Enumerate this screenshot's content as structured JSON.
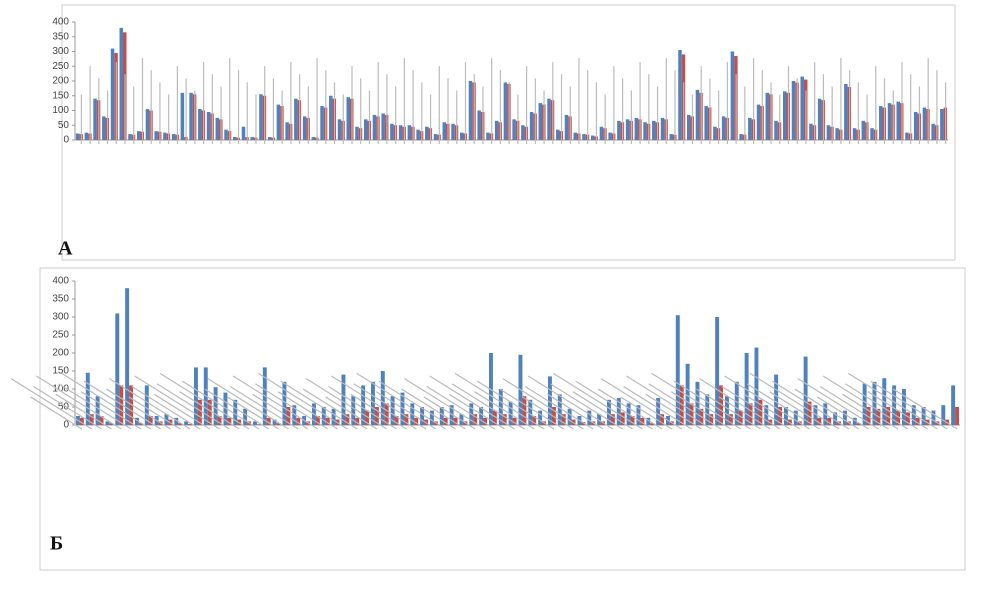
{
  "chart_data": [
    {
      "type": "bar",
      "label": "А",
      "ylim": [
        0,
        400
      ],
      "yticks": [
        0,
        50,
        100,
        150,
        200,
        250,
        300,
        350,
        400
      ],
      "series": [
        {
          "color": "#4f81bd",
          "values": [
            22,
            25,
            140,
            80,
            310,
            380,
            20,
            30,
            105,
            30,
            25,
            20,
            160,
            160,
            105,
            95,
            75,
            35,
            10,
            45,
            10,
            155,
            10,
            120,
            60,
            140,
            80,
            10,
            115,
            150,
            70,
            145,
            45,
            70,
            85,
            90,
            55,
            50,
            50,
            35,
            45,
            20,
            60,
            55,
            25,
            200,
            100,
            25,
            65,
            195,
            70,
            50,
            95,
            125,
            140,
            35,
            85,
            25,
            20,
            15,
            45,
            25,
            65,
            70,
            75,
            60,
            65,
            75,
            20,
            305,
            85,
            170,
            115,
            45,
            80,
            300,
            20,
            75,
            120,
            160,
            65,
            165,
            200,
            215,
            55,
            140,
            50,
            40,
            190,
            40,
            65,
            40,
            115,
            125,
            130,
            25,
            95,
            110,
            55,
            105
          ]
        },
        {
          "color": "#c0504d",
          "values": [
            20,
            22,
            135,
            75,
            295,
            365,
            18,
            28,
            100,
            28,
            22,
            18,
            10,
            155,
            100,
            90,
            70,
            30,
            8,
            10,
            8,
            150,
            8,
            115,
            55,
            135,
            75,
            8,
            110,
            140,
            65,
            140,
            40,
            65,
            80,
            85,
            50,
            45,
            45,
            30,
            40,
            18,
            55,
            50,
            22,
            195,
            95,
            22,
            60,
            190,
            65,
            45,
            90,
            120,
            135,
            30,
            80,
            22,
            18,
            12,
            40,
            22,
            60,
            65,
            70,
            55,
            60,
            70,
            18,
            290,
            80,
            160,
            110,
            40,
            75,
            285,
            18,
            70,
            115,
            155,
            60,
            160,
            195,
            205,
            50,
            135,
            45,
            35,
            180,
            35,
            60,
            35,
            110,
            120,
            125,
            22,
            90,
            105,
            50,
            110
          ]
        }
      ]
    },
    {
      "type": "bar",
      "label": "Б",
      "ylim": [
        0,
        400
      ],
      "yticks": [
        0,
        50,
        100,
        150,
        200,
        250,
        300,
        350,
        400
      ],
      "series": [
        {
          "color": "#4f81bd",
          "values": [
            25,
            145,
            80,
            10,
            310,
            380,
            20,
            110,
            25,
            30,
            20,
            10,
            160,
            160,
            105,
            90,
            70,
            45,
            10,
            160,
            15,
            120,
            55,
            25,
            60,
            50,
            45,
            140,
            80,
            110,
            120,
            150,
            80,
            90,
            60,
            50,
            40,
            50,
            55,
            30,
            60,
            50,
            200,
            100,
            65,
            195,
            70,
            40,
            135,
            85,
            45,
            25,
            40,
            30,
            70,
            75,
            60,
            55,
            20,
            75,
            25,
            305,
            170,
            120,
            85,
            300,
            80,
            120,
            200,
            215,
            55,
            140,
            50,
            40,
            190,
            55,
            60,
            35,
            40,
            20,
            115,
            120,
            130,
            110,
            100,
            55,
            50,
            40,
            55,
            110
          ]
        },
        {
          "color": "#c0504d",
          "values": [
            20,
            30,
            25,
            5,
            110,
            110,
            5,
            25,
            10,
            15,
            5,
            3,
            70,
            70,
            25,
            20,
            15,
            10,
            2,
            20,
            5,
            50,
            20,
            10,
            25,
            20,
            15,
            30,
            20,
            40,
            50,
            60,
            25,
            30,
            20,
            15,
            10,
            20,
            20,
            10,
            30,
            20,
            40,
            30,
            20,
            80,
            25,
            10,
            50,
            30,
            15,
            8,
            10,
            10,
            30,
            35,
            25,
            20,
            5,
            30,
            10,
            110,
            60,
            45,
            30,
            110,
            30,
            40,
            60,
            70,
            15,
            50,
            15,
            10,
            65,
            20,
            20,
            10,
            10,
            5,
            50,
            45,
            50,
            40,
            35,
            20,
            15,
            10,
            15,
            50
          ]
        }
      ]
    }
  ]
}
